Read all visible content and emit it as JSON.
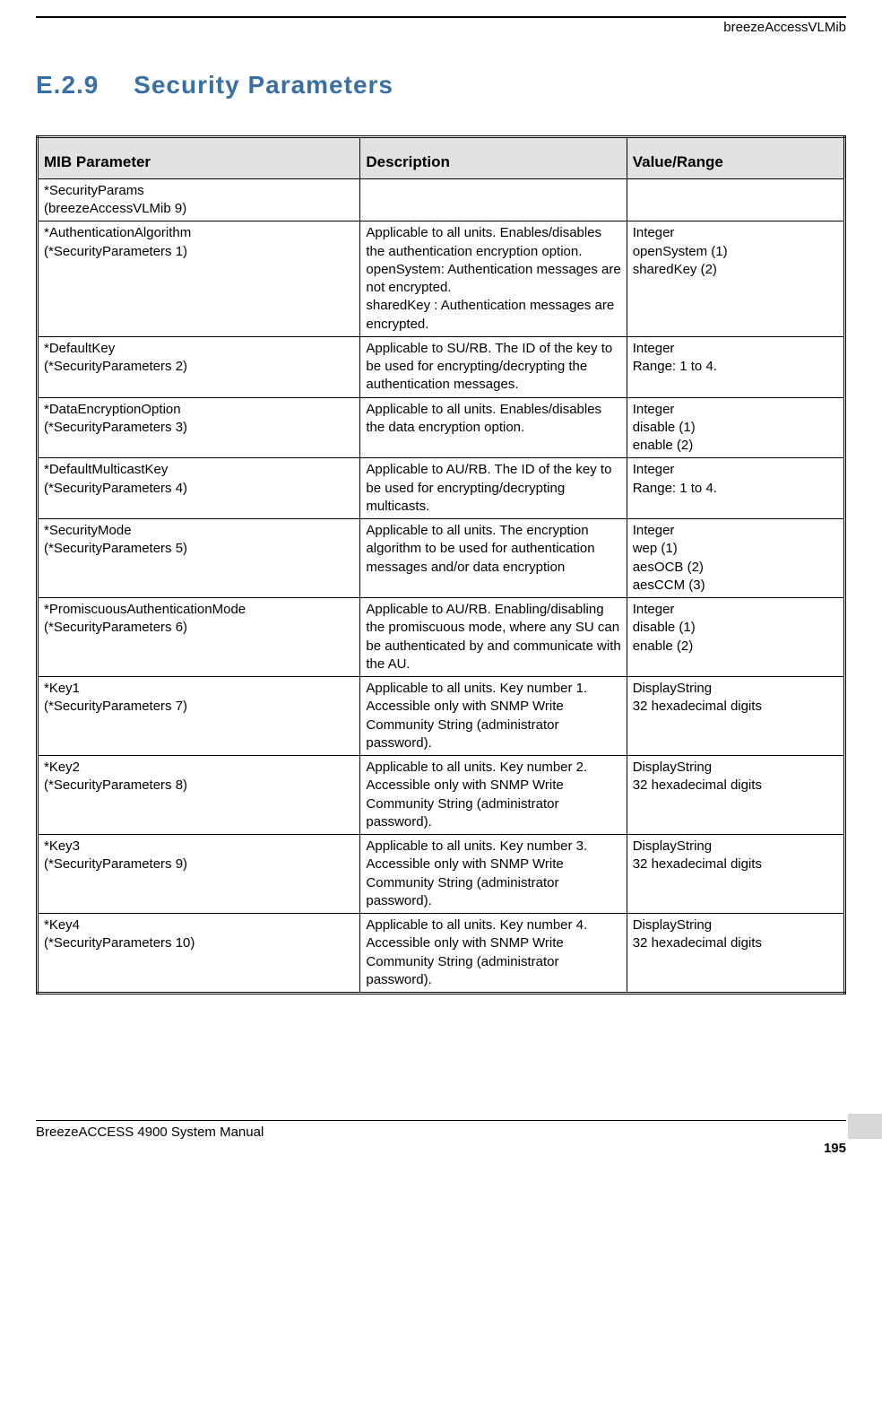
{
  "header": {
    "doc_title": "breezeAccessVLMib"
  },
  "heading": {
    "number": "E.2.9",
    "title": "Security Parameters",
    "color": "#3a6fa6"
  },
  "table": {
    "columns": [
      "MIB Parameter",
      "Description",
      "Value/Range"
    ],
    "header_bg": "#e2e2e2",
    "rows": [
      {
        "param": "*SecurityParams\n(breezeAccessVLMib 9)",
        "desc": "",
        "value": ""
      },
      {
        "param": "*AuthenticationAlgorithm\n(*SecurityParameters 1)",
        "desc": "Applicable to all units. Enables/disables the authentication encryption option.\nopenSystem: Authentication messages are not encrypted.\nsharedKey : Authentication messages are encrypted.",
        "value": "Integer\nopenSystem (1)\nsharedKey (2)"
      },
      {
        "param": "*DefaultKey\n(*SecurityParameters 2)",
        "desc": "Applicable to SU/RB. The ID of the key to be used for encrypting/decrypting the authentication messages.",
        "value": "Integer\nRange: 1 to 4."
      },
      {
        "param": "*DataEncryptionOption\n(*SecurityParameters 3)",
        "desc": "Applicable to all units. Enables/disables the data encryption option.",
        "value": "Integer\ndisable (1)\nenable (2)"
      },
      {
        "param": "*DefaultMulticastKey\n(*SecurityParameters 4)",
        "desc": "Applicable to AU/RB. The ID of the key to be used for encrypting/decrypting multicasts.",
        "value": "Integer\nRange: 1 to 4."
      },
      {
        "param": "*SecurityMode\n(*SecurityParameters 5)",
        "desc": "Applicable to all units. The encryption algorithm to be used for authentication messages and/or data encryption",
        "value": "Integer\nwep (1)\naesOCB (2)\naesCCM (3)"
      },
      {
        "param": "*PromiscuousAuthenticationMode\n(*SecurityParameters 6)",
        "desc": "Applicable to AU/RB. Enabling/disabling the promiscuous mode, where any SU can be authenticated by and communicate with the AU.",
        "value": "Integer\ndisable (1)\nenable (2)"
      },
      {
        "param": "*Key1\n(*SecurityParameters 7)",
        "desc": "Applicable to all units. Key number 1. Accessible only with SNMP Write Community String (administrator password).",
        "value": "DisplayString\n32 hexadecimal digits"
      },
      {
        "param": "*Key2\n(*SecurityParameters 8)",
        "desc": "Applicable to all units. Key number 2. Accessible only with SNMP Write Community String (administrator password).",
        "value": "DisplayString\n32 hexadecimal digits"
      },
      {
        "param": "*Key3\n(*SecurityParameters 9)",
        "desc": "Applicable to all units. Key number 3. Accessible only with SNMP Write Community String (administrator password).",
        "value": "DisplayString\n32 hexadecimal digits"
      },
      {
        "param": "*Key4\n(*SecurityParameters 10)",
        "desc": "Applicable to all units. Key number 4. Accessible only with SNMP Write Community String (administrator password).",
        "value": "DisplayString\n32 hexadecimal digits"
      }
    ]
  },
  "footer": {
    "manual_title": "BreezeACCESS 4900 System Manual",
    "page_number": "195"
  }
}
